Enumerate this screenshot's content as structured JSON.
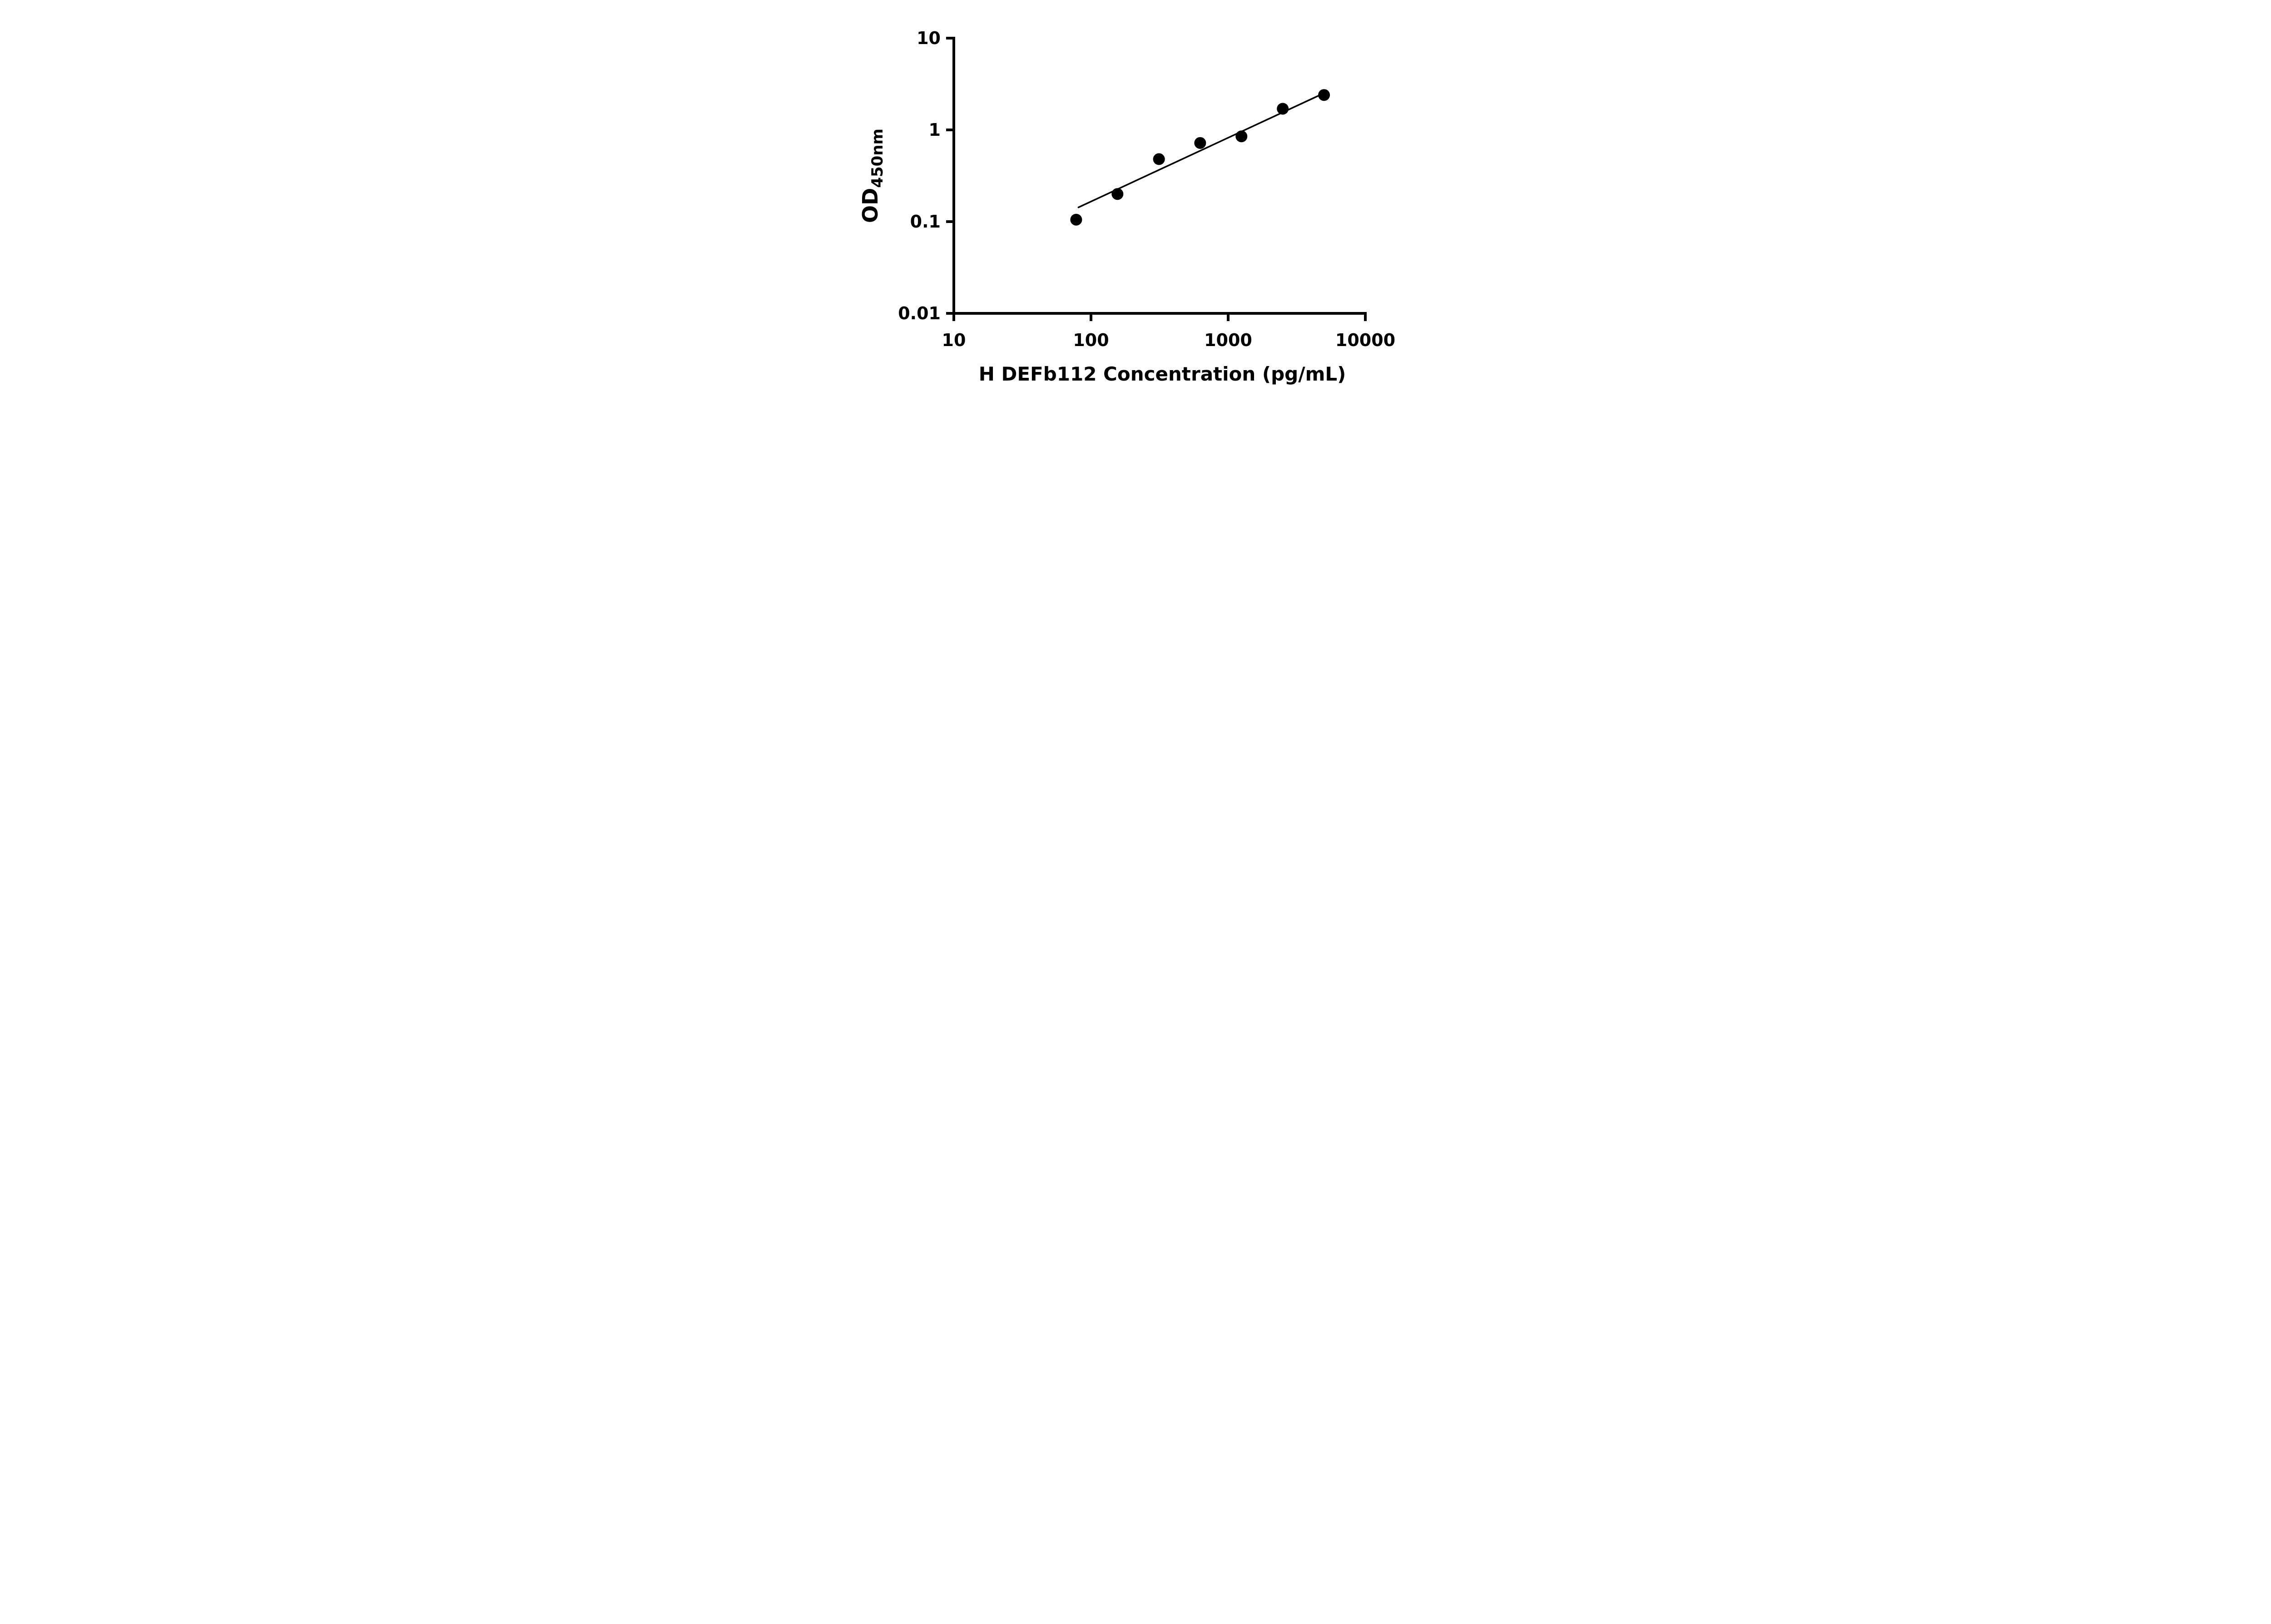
{
  "chart_data": {
    "type": "scatter",
    "title": "",
    "xlabel": "H DEFb112 Concentration (pg/mL)",
    "ylabel": "OD",
    "ylabel_sub": "450nm",
    "x_scale": "log",
    "y_scale": "log",
    "xlim": [
      10,
      10000
    ],
    "ylim": [
      0.01,
      10
    ],
    "x_ticks": [
      10,
      100,
      1000,
      10000
    ],
    "x_tick_labels": [
      "10",
      "100",
      "1000",
      "10000"
    ],
    "y_ticks": [
      0.01,
      0.1,
      1,
      10
    ],
    "y_tick_labels": [
      "0.01",
      "0.1",
      "1",
      "10"
    ],
    "grid": false,
    "legend": "none",
    "series": [
      {
        "name": "fit-line",
        "type": "line",
        "points": [
          {
            "x": 81,
            "y": 0.143
          },
          {
            "x": 5100,
            "y": 2.55
          }
        ],
        "color": "#000000"
      },
      {
        "name": "standard-curve-points",
        "type": "scatter",
        "points": [
          {
            "x": 78,
            "y": 0.105
          },
          {
            "x": 156,
            "y": 0.2
          },
          {
            "x": 313,
            "y": 0.48
          },
          {
            "x": 625,
            "y": 0.72
          },
          {
            "x": 1250,
            "y": 0.85
          },
          {
            "x": 2500,
            "y": 1.7
          },
          {
            "x": 5000,
            "y": 2.4
          }
        ],
        "color": "#000000"
      }
    ]
  },
  "colors": {
    "background": "#ffffff",
    "axis": "#000000",
    "marker": "#000000",
    "line": "#000000"
  }
}
